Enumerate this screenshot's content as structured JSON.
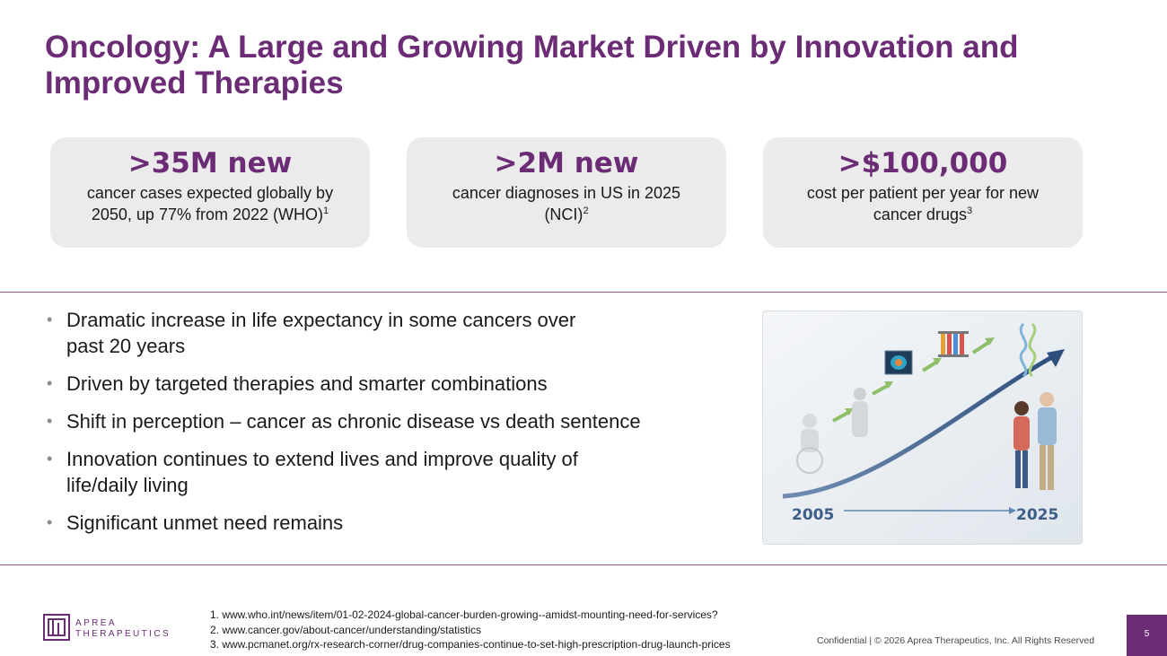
{
  "title": "Oncology: A Large and Growing Market Driven by Innovation and Improved Therapies",
  "stats": [
    {
      "value": ">35M new",
      "description": "cancer cases expected globally by 2050, up 77% from 2022 (WHO)",
      "ref": "1"
    },
    {
      "value": ">2M new",
      "description": "cancer diagnoses in US in 2025 (NCI)",
      "ref": "2"
    },
    {
      "value": ">$100,000",
      "description": "cost per patient per year for new cancer drugs",
      "ref": "3"
    }
  ],
  "bullets": [
    "Dramatic increase in life expectancy in some cancers over past 20 years",
    "Driven by  targeted therapies and smarter combinations",
    "Shift in perception – cancer as chronic disease vs death sentence",
    "Innovation continues to extend lives and improve quality of life/daily living",
    "Significant unmet need remains"
  ],
  "illustration": {
    "start_year": "2005",
    "end_year": "2025"
  },
  "footnotes": [
    "1. www.who.int/news/item/01-02-2024-global-cancer-burden-growing--amidst-mounting-need-for-services?",
    "2. www.cancer.gov/about-cancer/understanding/statistics",
    "3. www.pcmanet.org/rx-research-corner/drug-companies-continue-to-set-high-prescription-drug-launch-prices"
  ],
  "logo": {
    "line1": "APREA",
    "line2": "THERAPEUTICS"
  },
  "footer": {
    "confidential": "Confidential  |  © 2026 Aprea Therapeutics, Inc. All Rights Reserved",
    "page_number": "5"
  },
  "colors": {
    "brand": "#6b2c75",
    "card_bg": "#ebebeb",
    "arrow": "#3d5d87"
  }
}
